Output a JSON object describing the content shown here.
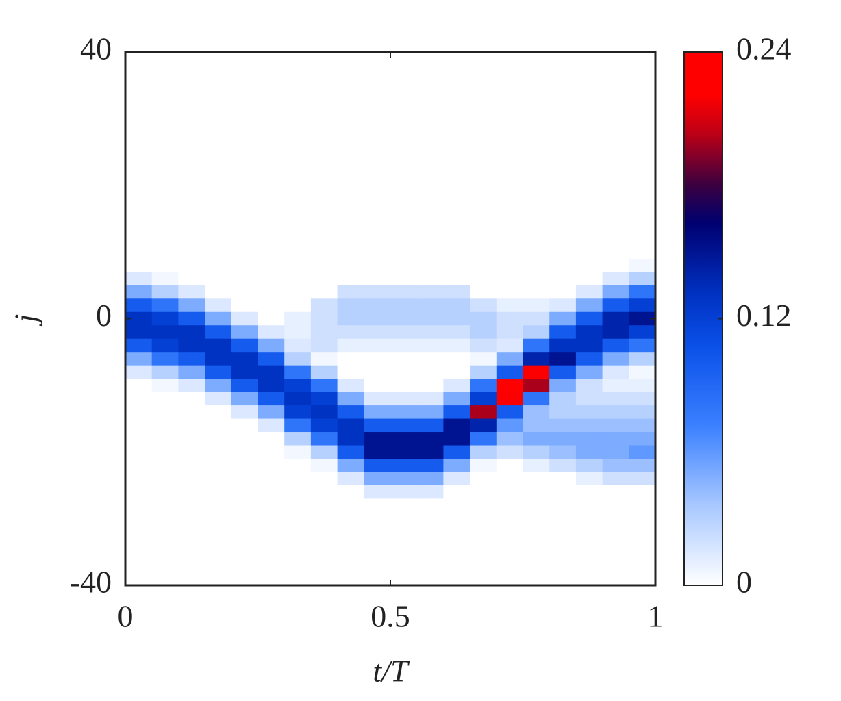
{
  "chart_data": {
    "type": "heatmap",
    "xlabel": "t/T",
    "ylabel": "j",
    "x": [
      0.025,
      0.075,
      0.125,
      0.175,
      0.225,
      0.275,
      0.325,
      0.375,
      0.425,
      0.475,
      0.525,
      0.575,
      0.625,
      0.675,
      0.725,
      0.775,
      0.825,
      0.875,
      0.925,
      0.975
    ],
    "y": [
      10,
      8,
      6,
      4,
      2,
      0,
      -2,
      -4,
      -6,
      -8,
      -10,
      -12,
      -14,
      -16,
      -18,
      -20,
      -22,
      -24,
      -26,
      -28,
      -30
    ],
    "values": [
      [
        0,
        0,
        0.015,
        0.05,
        0.1,
        0.13,
        0.13,
        0.1,
        0.05,
        0.015,
        0,
        0,
        0,
        0,
        0,
        0,
        0,
        0,
        0,
        0,
        0
      ],
      [
        0,
        0,
        0.005,
        0.03,
        0.08,
        0.12,
        0.13,
        0.12,
        0.08,
        0.03,
        0.005,
        0,
        0,
        0,
        0,
        0,
        0,
        0,
        0,
        0,
        0
      ],
      [
        0,
        0,
        0,
        0.015,
        0.05,
        0.1,
        0.13,
        0.13,
        0.1,
        0.05,
        0.015,
        0,
        0,
        0,
        0,
        0,
        0,
        0,
        0,
        0,
        0
      ],
      [
        0,
        0,
        0,
        0,
        0.015,
        0.05,
        0.1,
        0.13,
        0.13,
        0.1,
        0.05,
        0.015,
        0,
        0,
        0,
        0,
        0,
        0,
        0,
        0,
        0
      ],
      [
        0,
        0,
        0,
        0,
        0,
        0.015,
        0.05,
        0.1,
        0.13,
        0.13,
        0.1,
        0.05,
        0.015,
        0,
        0,
        0,
        0,
        0,
        0,
        0,
        0
      ],
      [
        0,
        0,
        0,
        0,
        0,
        0,
        0.015,
        0.05,
        0.1,
        0.13,
        0.13,
        0.1,
        0.05,
        0.015,
        0,
        0,
        0,
        0,
        0,
        0,
        0
      ],
      [
        0,
        0,
        0,
        0,
        0,
        0.01,
        0.01,
        0.015,
        0.03,
        0.08,
        0.12,
        0.13,
        0.12,
        0.08,
        0.03,
        0.005,
        0,
        0,
        0,
        0,
        0
      ],
      [
        0,
        0,
        0,
        0,
        0.02,
        0.02,
        0.02,
        0.02,
        0.005,
        0.03,
        0.08,
        0.12,
        0.13,
        0.12,
        0.08,
        0.03,
        0.005,
        0,
        0,
        0,
        0
      ],
      [
        0,
        0,
        0,
        0.02,
        0.03,
        0.03,
        0.02,
        0.01,
        0,
        0,
        0.015,
        0.05,
        0.1,
        0.13,
        0.13,
        0.1,
        0.05,
        0.015,
        0,
        0,
        0
      ],
      [
        0,
        0,
        0,
        0.02,
        0.03,
        0.03,
        0.02,
        0.01,
        0,
        0,
        0,
        0.015,
        0.05,
        0.1,
        0.15,
        0.15,
        0.1,
        0.05,
        0.015,
        0,
        0
      ],
      [
        0,
        0,
        0,
        0.02,
        0.03,
        0.03,
        0.02,
        0.01,
        0,
        0,
        0,
        0.015,
        0.05,
        0.1,
        0.15,
        0.15,
        0.1,
        0.05,
        0.015,
        0,
        0
      ],
      [
        0,
        0,
        0,
        0.02,
        0.03,
        0.03,
        0.02,
        0.01,
        0,
        0,
        0,
        0.015,
        0.05,
        0.1,
        0.15,
        0.15,
        0.1,
        0.05,
        0.015,
        0,
        0
      ],
      [
        0,
        0,
        0,
        0.02,
        0.03,
        0.03,
        0.02,
        0.01,
        0,
        0,
        0.015,
        0.05,
        0.1,
        0.15,
        0.15,
        0.1,
        0.05,
        0.015,
        0,
        0,
        0
      ],
      [
        0,
        0,
        0,
        0,
        0.02,
        0.03,
        0.03,
        0.02,
        0.005,
        0.03,
        0.08,
        0.12,
        0.2,
        0.14,
        0.08,
        0.03,
        0.005,
        0,
        0,
        0,
        0
      ],
      [
        0,
        0,
        0,
        0,
        0.01,
        0.02,
        0.02,
        0.015,
        0.05,
        0.1,
        0.24,
        0.22,
        0.1,
        0.06,
        0.04,
        0.02,
        0,
        0,
        0,
        0,
        0
      ],
      [
        0,
        0,
        0,
        0,
        0.01,
        0.02,
        0.03,
        0.08,
        0.14,
        0.22,
        0.2,
        0.08,
        0.04,
        0.04,
        0.05,
        0.03,
        0.01,
        0,
        0,
        0,
        0
      ],
      [
        0,
        0,
        0,
        0,
        0.015,
        0.05,
        0.1,
        0.13,
        0.15,
        0.1,
        0.05,
        0.03,
        0.03,
        0.04,
        0.05,
        0.04,
        0.02,
        0,
        0,
        0,
        0
      ],
      [
        0,
        0,
        0,
        0.015,
        0.05,
        0.1,
        0.13,
        0.13,
        0.1,
        0.05,
        0.02,
        0.02,
        0.03,
        0.04,
        0.05,
        0.05,
        0.03,
        0.01,
        0,
        0,
        0
      ],
      [
        0,
        0,
        0.015,
        0.05,
        0.1,
        0.14,
        0.14,
        0.1,
        0.05,
        0.015,
        0.01,
        0.02,
        0.03,
        0.04,
        0.05,
        0.05,
        0.04,
        0.02,
        0,
        0,
        0
      ],
      [
        0,
        0.005,
        0.03,
        0.08,
        0.12,
        0.15,
        0.12,
        0.08,
        0.03,
        0.005,
        0.01,
        0.02,
        0.03,
        0.04,
        0.05,
        0.06,
        0.04,
        0.02,
        0,
        0,
        0
      ]
    ],
    "xlim": [
      0,
      1
    ],
    "ylim": [
      -40,
      40
    ],
    "xticks": [
      0,
      0.5,
      1
    ],
    "yticks": [
      -40,
      0,
      40
    ],
    "clim": [
      0,
      0.24
    ],
    "cticks": [
      0,
      0.12,
      0.24
    ],
    "colormap": [
      [
        0,
        "#ffffff"
      ],
      [
        0.15,
        "#a8c8ff"
      ],
      [
        0.3,
        "#3a80ff"
      ],
      [
        0.45,
        "#0a50e8"
      ],
      [
        0.55,
        "#0030c0"
      ],
      [
        0.68,
        "#000070"
      ],
      [
        0.75,
        "#3a0040"
      ],
      [
        0.85,
        "#c00015"
      ],
      [
        0.92,
        "#ff0000"
      ],
      [
        1,
        "#ff0000"
      ]
    ]
  }
}
